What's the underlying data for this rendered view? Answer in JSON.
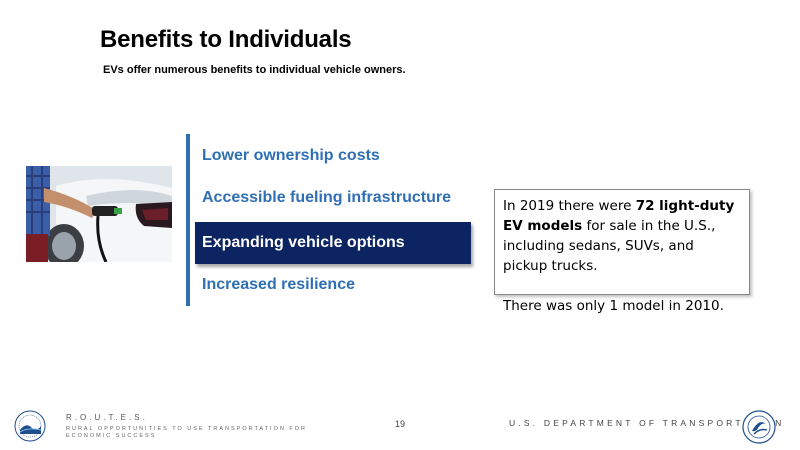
{
  "slide": {
    "title": "Benefits to Individuals",
    "subtitle": "EVs offer numerous benefits to individual vehicle owners."
  },
  "menu": {
    "items": [
      {
        "label": "Lower ownership costs",
        "active": false
      },
      {
        "label": "Accessible fueling infrastructure",
        "active": false
      },
      {
        "label": "Expanding vehicle options",
        "active": true
      },
      {
        "label": "Increased resilience",
        "active": false
      }
    ]
  },
  "infobox": {
    "p1_pre": "In 2019 there were ",
    "p1_bold": "72 light-duty EV models",
    "p1_post": " for sale in the U.S., including sedans, SUVs, and pickup trucks.",
    "p2": "There was only 1 model in 2010."
  },
  "footer": {
    "routes_title": "R.O.U.T.E.S.",
    "routes_subtitle": "RURAL OPPORTUNITIES TO USE TRANSPORTATION FOR ECONOMIC SUCCESS",
    "page_number": "19",
    "department": "U.S. DEPARTMENT OF TRANSPORTATION"
  },
  "icons": {
    "photo": "ev-charging-photo",
    "left_seal": "routes-logo-icon",
    "right_seal": "dot-seal-icon"
  },
  "colors": {
    "accent_blue": "#2f6fb3",
    "active_navy": "#0c2461"
  }
}
